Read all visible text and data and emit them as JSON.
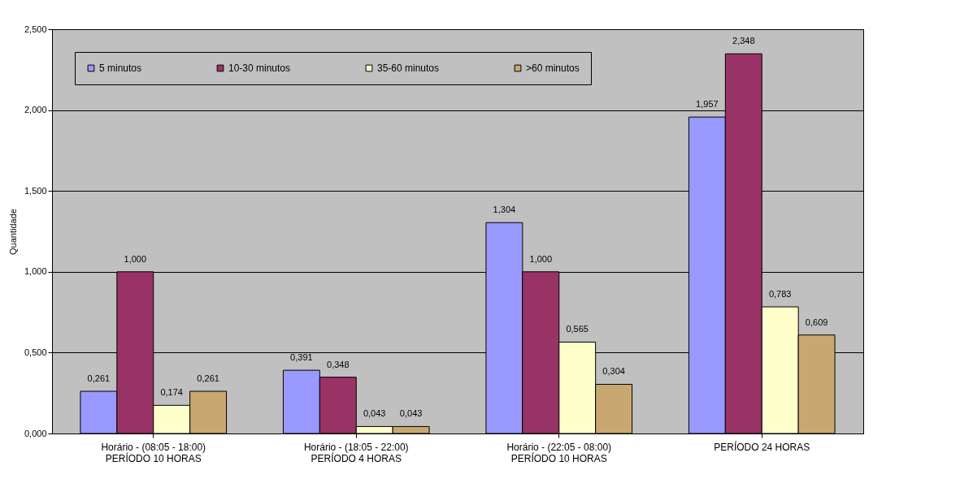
{
  "chart_data": {
    "type": "bar",
    "ylabel": "Quantidade",
    "categories": [
      "Horário - (08:05 - 18:00)\nPERÍODO 10 HORAS",
      "Horário - (18:05 - 22:00)\nPERÍODO 4 HORAS",
      "Horário - (22:05 - 08:00)\nPERÍODO 10 HORAS",
      "PERÍODO 24 HORAS"
    ],
    "series": [
      {
        "name": "5 minutos",
        "color": "#9999ff",
        "values": [
          0.261,
          0.391,
          1.304,
          1.957
        ],
        "value_labels": [
          "0,261",
          "0,391",
          "1,304",
          "1,957"
        ]
      },
      {
        "name": "10-30 minutos",
        "color": "#993366",
        "values": [
          1.0,
          0.348,
          1.0,
          2.348
        ],
        "value_labels": [
          "1,000",
          "0,348",
          "1,000",
          "2,348"
        ]
      },
      {
        "name": "35-60 minutos",
        "color": "#ffffcc",
        "values": [
          0.174,
          0.043,
          0.565,
          0.783
        ],
        "value_labels": [
          "0,174",
          "0,043",
          "0,565",
          "0,783"
        ]
      },
      {
        "name": ">60 minutos",
        "color": "#c8a870",
        "values": [
          0.261,
          0.043,
          0.304,
          0.609
        ],
        "value_labels": [
          "0,261",
          "0,043",
          "0,304",
          "0,609"
        ]
      }
    ],
    "ylim": [
      0,
      2.5
    ],
    "yticks": [
      {
        "value": 0,
        "label": "0,000"
      },
      {
        "value": 0.5,
        "label": "0,500"
      },
      {
        "value": 1,
        "label": "1,000"
      },
      {
        "value": 1.5,
        "label": "1,500"
      },
      {
        "value": 2,
        "label": "2,000"
      },
      {
        "value": 2.5,
        "label": "2,500"
      }
    ],
    "grid": "y",
    "legend": "top left"
  }
}
